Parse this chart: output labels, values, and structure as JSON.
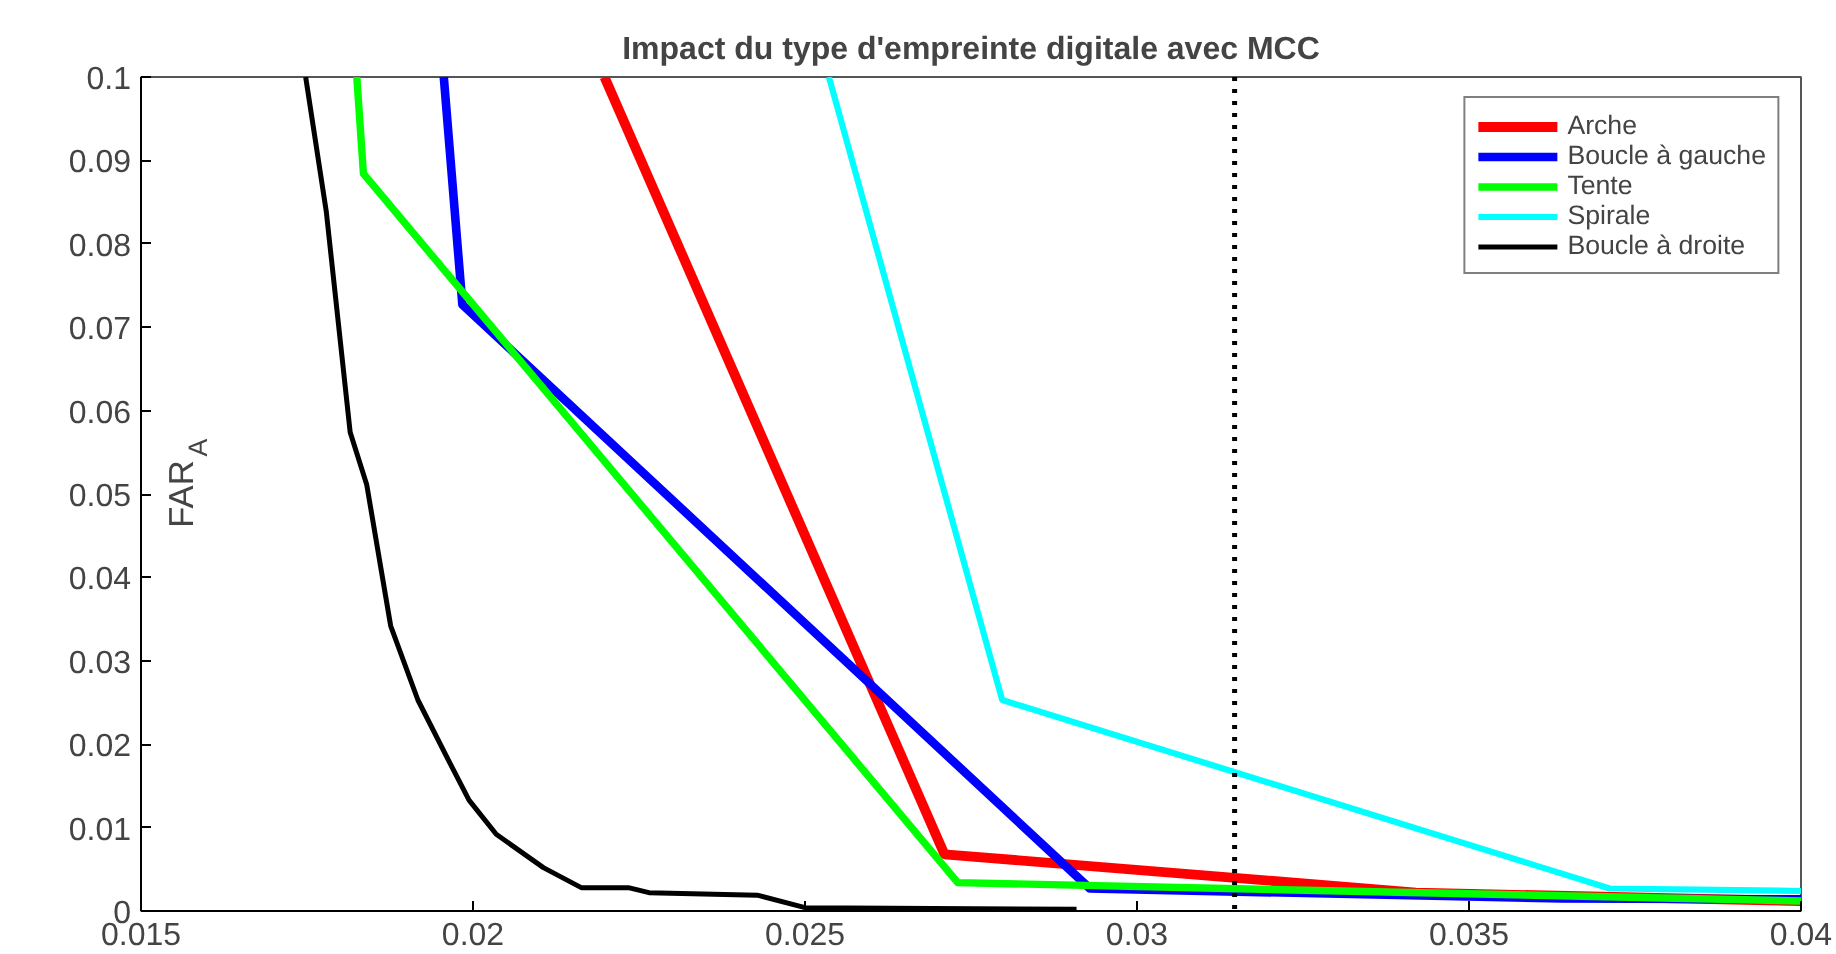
{
  "chart_data": {
    "type": "line",
    "title": "Impact du type d'empreinte digitale avec MCC",
    "ylabel": "FAR$_{A}$",
    "xlim": [
      0.015,
      0.04
    ],
    "ylim": [
      0,
      0.1
    ],
    "xticks": [
      0.015,
      0.02,
      0.025,
      0.03,
      0.035,
      0.04
    ],
    "yticks": [
      0,
      0.01,
      0.02,
      0.03,
      0.04,
      0.05,
      0.06,
      0.07,
      0.08,
      0.09,
      0.1
    ],
    "grid": false,
    "legend": "top right",
    "marker": "none",
    "line_style": "solid",
    "series": [
      {
        "name": "Arche",
        "color": "#ff0000",
        "x": [
          0.02198,
          0.0271,
          0.0342,
          0.04
        ],
        "values": [
          0.1,
          0.0068,
          0.0022,
          0.0012
        ]
      },
      {
        "name": "Boucle à gauche",
        "color": "#0000ff",
        "x": [
          0.01956,
          0.01984,
          0.02929,
          0.0364,
          0.04
        ],
        "values": [
          0.1,
          0.0727,
          0.0027,
          0.0015,
          0.0014
        ]
      },
      {
        "name": "Tente",
        "color": "#00ff00",
        "x": [
          0.01825,
          0.01835,
          0.0273,
          0.04
        ],
        "values": [
          0.1,
          0.0884,
          0.0034,
          0.0012
        ]
      },
      {
        "name": "Spirale",
        "color": "#00ffff",
        "x": [
          0.02536,
          0.02797,
          0.03712,
          0.04
        ],
        "values": [
          0.1,
          0.0253,
          0.0027,
          0.0024
        ]
      },
      {
        "name": "Boucle à droite",
        "color": "#000000",
        "x": [
          0.01748,
          0.01779,
          0.01815,
          0.0184,
          0.01876,
          0.01917,
          0.01968,
          0.01994,
          0.02035,
          0.02106,
          0.02163,
          0.02234,
          0.02265,
          0.02428,
          0.025,
          0.02909
        ],
        "values": [
          0.1,
          0.0839,
          0.0574,
          0.0511,
          0.0342,
          0.0253,
          0.0173,
          0.0133,
          0.0092,
          0.0052,
          0.0028,
          0.0028,
          0.0022,
          0.0019,
          0.0004,
          0.0002
        ]
      }
    ],
    "ref_lines": [
      {
        "axis": "x",
        "value": 0.03147,
        "color": "#000000",
        "line_style": "dotted"
      }
    ]
  }
}
